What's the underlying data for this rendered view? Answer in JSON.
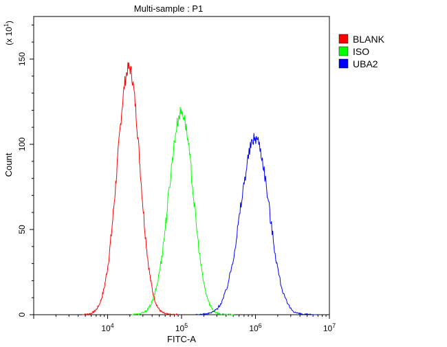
{
  "chart_data": {
    "type": "line",
    "title": "Multi-sample : P1",
    "xlabel": "FITC-A",
    "ylabel": "Count",
    "y_multiplier_label": "(x 10",
    "y_multiplier_exp": "1",
    "x_scale": "log",
    "xlim": [
      1000,
      10000000
    ],
    "ylim": [
      0,
      175
    ],
    "x_ticks": [
      {
        "base": "10",
        "exp": "4",
        "value": 10000
      },
      {
        "base": "10",
        "exp": "5",
        "value": 100000
      },
      {
        "base": "10",
        "exp": "6",
        "value": 1000000
      },
      {
        "base": "10",
        "exp": "7",
        "value": 10000000
      }
    ],
    "y_ticks": [
      {
        "label": "0",
        "value": 0
      },
      {
        "label": "50",
        "value": 50
      },
      {
        "label": "100",
        "value": 100
      },
      {
        "label": "150",
        "value": 150
      }
    ],
    "legend_position": "top-right",
    "grid": false,
    "series": [
      {
        "name": "BLANK",
        "color": "#ff0000",
        "peak_x": 19500,
        "peak_y": 145,
        "width_log": 0.16
      },
      {
        "name": "ISO",
        "color": "#00ff00",
        "peak_x": 100000,
        "peak_y": 119,
        "width_log": 0.17
      },
      {
        "name": "UBA2",
        "color": "#0000ff",
        "peak_x": 1000000,
        "peak_y": 104,
        "width_log": 0.2
      }
    ]
  }
}
